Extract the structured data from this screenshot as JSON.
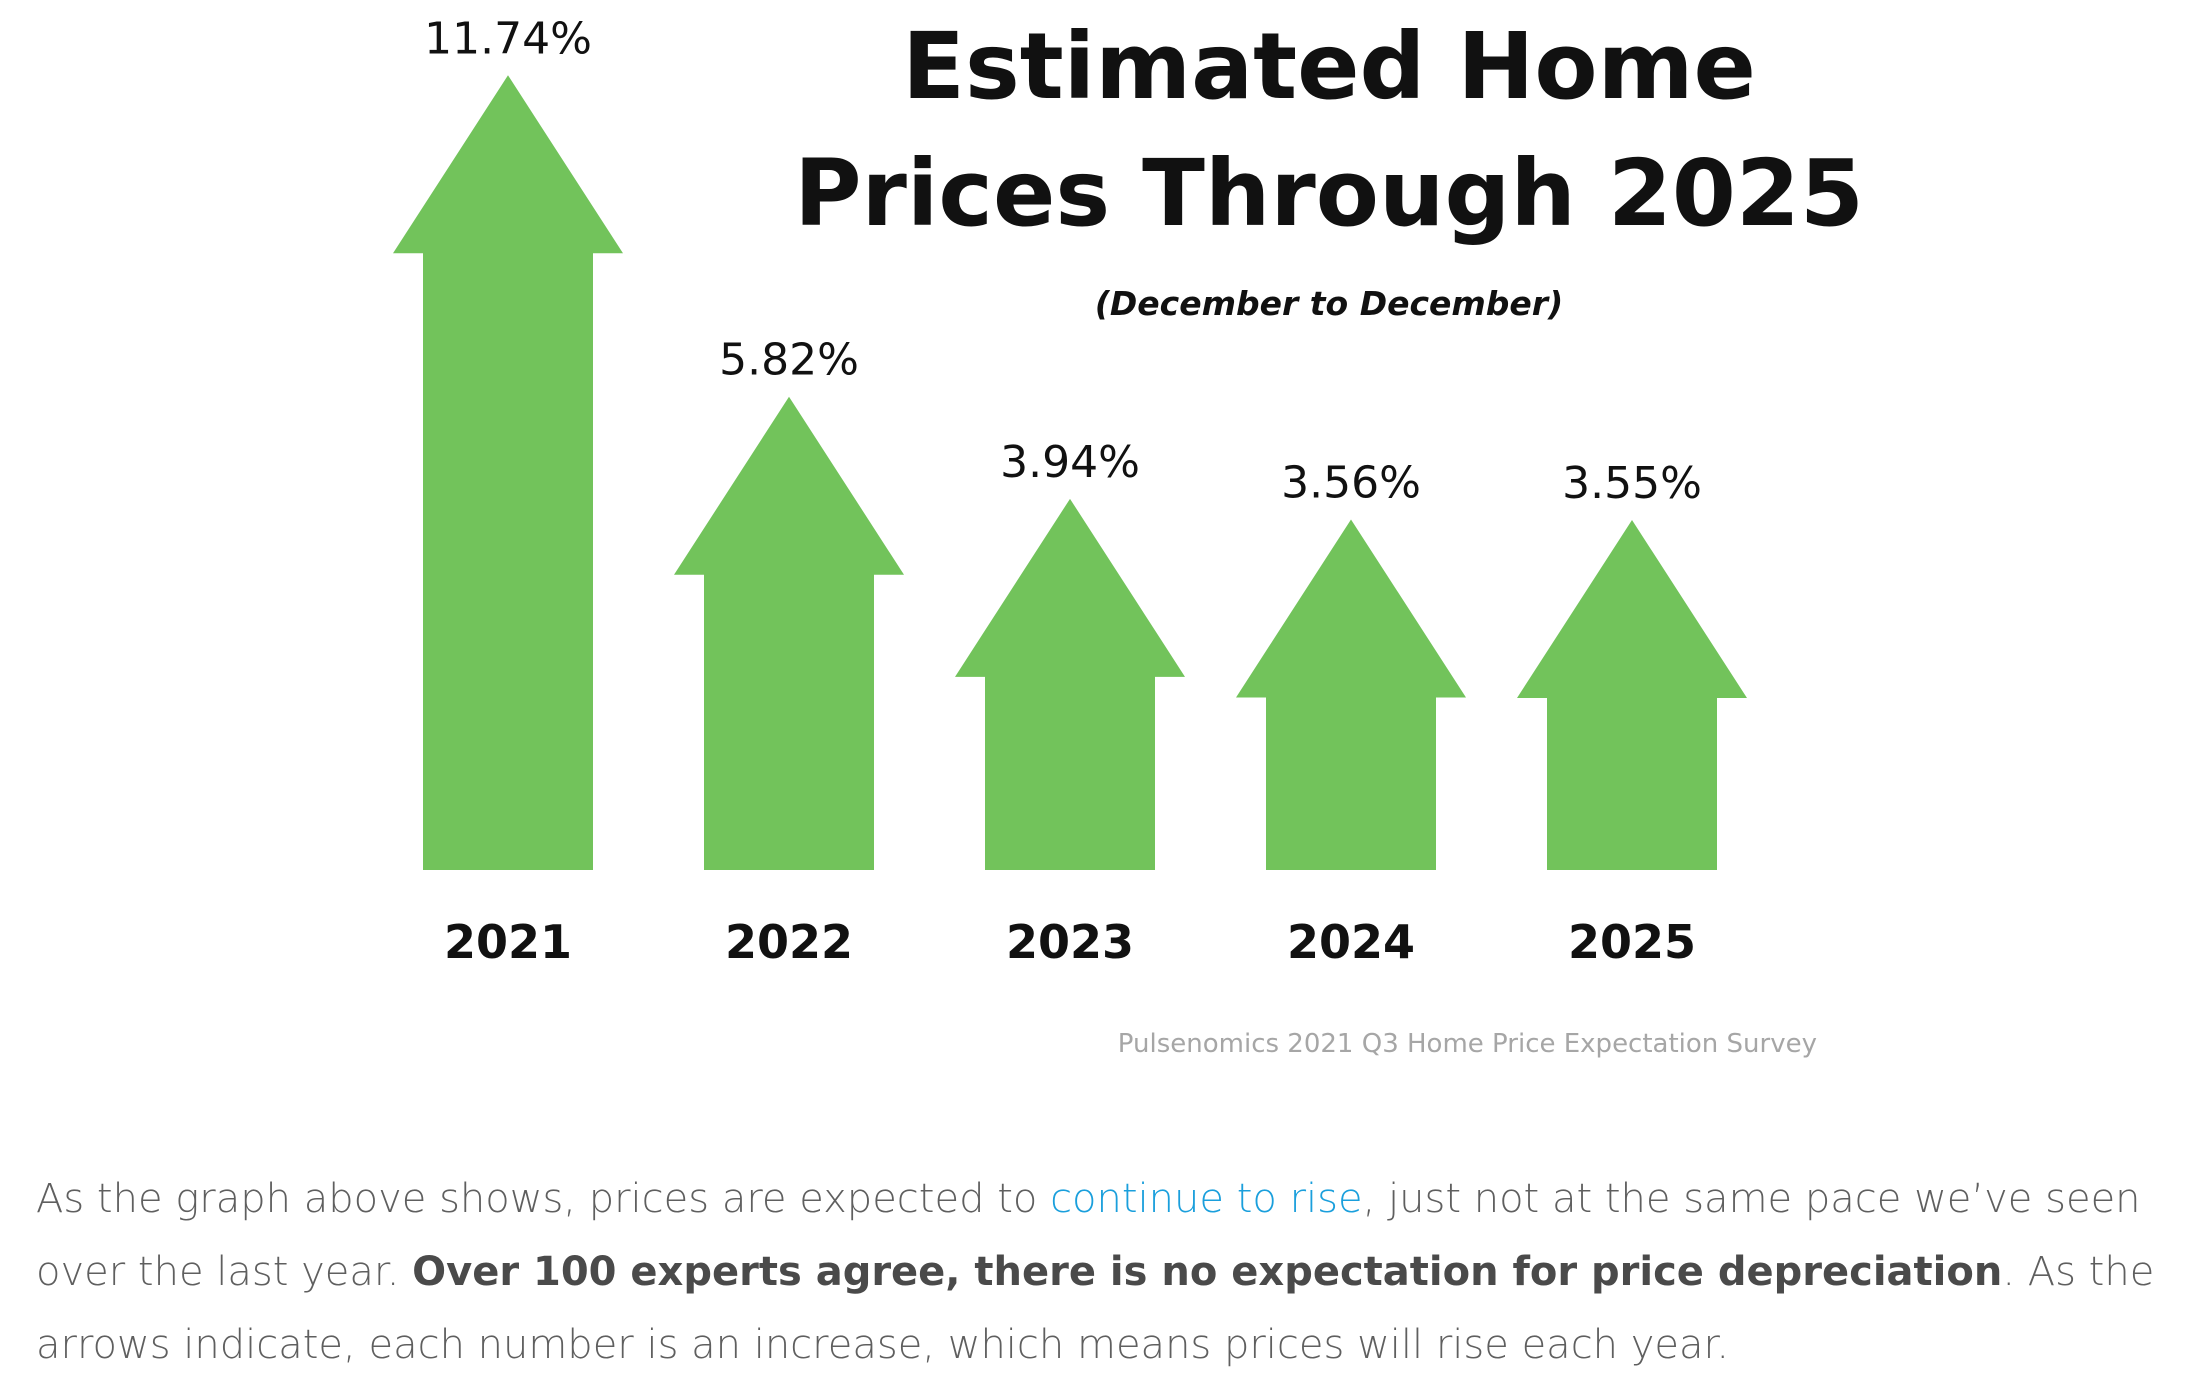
{
  "chart_data": {
    "type": "bar",
    "title_lines": [
      "Estimated Home",
      "Prices Through 2025"
    ],
    "subtitle": "(December to December)",
    "categories": [
      "2021",
      "2022",
      "2023",
      "2024",
      "2025"
    ],
    "values": [
      11.74,
      5.82,
      3.94,
      3.56,
      3.55
    ],
    "value_labels": [
      "11.74%",
      "5.82%",
      "3.94%",
      "3.56%",
      "3.55%"
    ],
    "unit": "%",
    "ylim": [
      0,
      12
    ],
    "mark": "up-arrow",
    "color": "#72c35b",
    "source": "Pulsenomics 2021 Q3 Home Price Expectation Survey",
    "xlabel": "",
    "ylabel": ""
  },
  "article": {
    "intro": "As the graph above shows, prices are expected to ",
    "link_text": "continue to rise",
    "middle": ", just not at the same pace we’ve seen over the last year. ",
    "bold_text": "Over 100 experts agree, there is no expectation for price depreciation",
    "outro": ". As the arrows indicate, each number is an increase, which means prices will rise each year."
  },
  "colors": {
    "arrow": "#72c35b",
    "link": "#1a9fdc",
    "body_text": "#5f5f5f",
    "source_text": "#a6a6a6"
  }
}
